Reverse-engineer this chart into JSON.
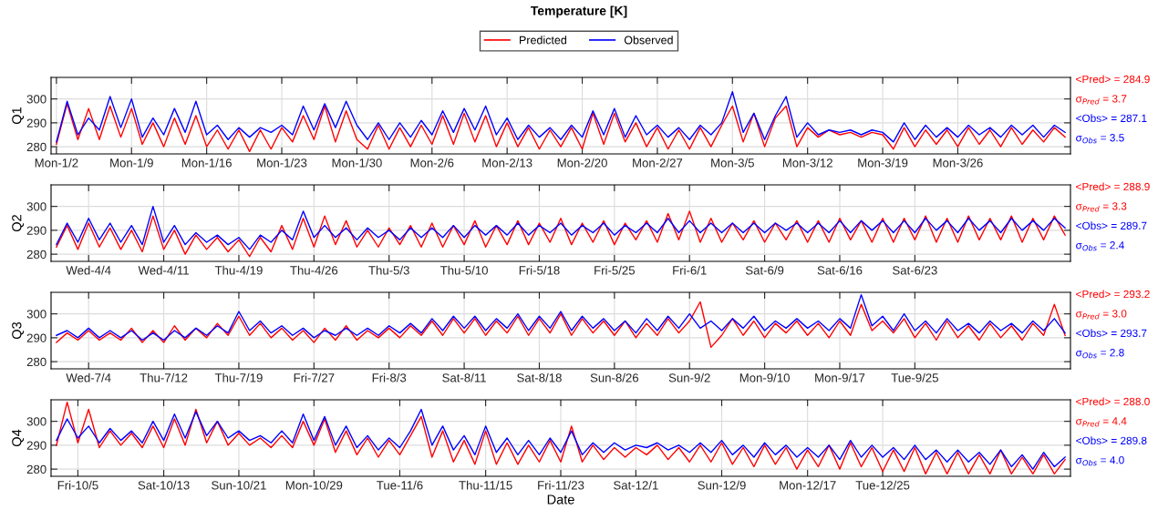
{
  "chart_data": [
    {
      "type": "line",
      "title": "Temperature [K]",
      "ylabel": "Q1",
      "legend": "top",
      "grid": true,
      "ylim": [
        277,
        309
      ],
      "yticks": [
        280,
        290,
        300
      ],
      "annotations": [
        "<Pred> = 284.9",
        "σ$_{Pred}$ = 3.7",
        "<Obs> = 287.1",
        "σ$_{Obs}$ = 3.5"
      ],
      "categories": [
        "Mon-1/2",
        null,
        null,
        null,
        null,
        null,
        null,
        "Mon-1/9",
        null,
        null,
        null,
        null,
        null,
        null,
        "Mon-1/16",
        null,
        null,
        null,
        null,
        null,
        null,
        "Mon-1/23",
        null,
        null,
        null,
        null,
        null,
        null,
        "Mon-1/30",
        null,
        null,
        null,
        null,
        null,
        null,
        "Mon-2/6",
        null,
        null,
        null,
        null,
        null,
        null,
        "Mon-2/13",
        null,
        null,
        null,
        null,
        null,
        null,
        "Mon-2/20",
        null,
        null,
        null,
        null,
        null,
        null,
        "Mon-2/27",
        null,
        null,
        null,
        null,
        null,
        null,
        "Mon-3/5",
        null,
        null,
        null,
        null,
        null,
        null,
        "Mon-3/12",
        null,
        null,
        null,
        null,
        null,
        null,
        "Mon-3/19",
        null,
        null,
        null,
        null,
        null,
        null,
        "Mon-3/26",
        null,
        null,
        null,
        null,
        null,
        null,
        null,
        null,
        null,
        null
      ],
      "series": [
        {
          "name": "Predicted",
          "color": "#ff0000",
          "values": [
            281,
            298,
            283,
            296,
            283,
            297,
            284,
            296,
            281,
            290,
            280,
            292,
            281,
            293,
            280,
            287,
            279,
            287,
            278,
            287,
            279,
            288,
            282,
            293,
            283,
            297,
            282,
            295,
            283,
            279,
            289,
            279,
            288,
            280,
            289,
            281,
            293,
            281,
            294,
            282,
            293,
            280,
            290,
            280,
            288,
            279,
            287,
            280,
            288,
            279,
            294,
            281,
            294,
            282,
            290,
            280,
            288,
            279,
            287,
            279,
            288,
            280,
            289,
            297,
            282,
            294,
            280,
            292,
            297,
            280,
            288,
            284,
            287,
            285,
            286,
            284,
            286,
            285,
            279,
            288,
            280,
            287,
            281,
            287,
            280,
            288,
            281,
            287,
            280,
            288,
            281,
            287,
            282,
            288,
            284
          ]
        },
        {
          "name": "Observed",
          "color": "#0000ff",
          "values": [
            282,
            299,
            285,
            292,
            287,
            301,
            288,
            300,
            284,
            292,
            285,
            296,
            286,
            299,
            285,
            289,
            283,
            288,
            284,
            288,
            286,
            289,
            285,
            297,
            287,
            298,
            288,
            299,
            289,
            283,
            290,
            283,
            290,
            284,
            291,
            285,
            295,
            286,
            296,
            287,
            297,
            285,
            292,
            283,
            289,
            284,
            288,
            283,
            289,
            284,
            295,
            285,
            296,
            284,
            293,
            285,
            289,
            284,
            288,
            283,
            289,
            285,
            290,
            303,
            286,
            294,
            283,
            293,
            301,
            284,
            290,
            285,
            287,
            286,
            287,
            285,
            287,
            286,
            282,
            290,
            283,
            289,
            284,
            288,
            284,
            289,
            285,
            288,
            284,
            289,
            285,
            289,
            284,
            289,
            286
          ]
        }
      ]
    },
    {
      "type": "line",
      "ylabel": "Q2",
      "grid": true,
      "ylim": [
        277,
        309
      ],
      "yticks": [
        280,
        290,
        300
      ],
      "annotations": [
        "<Pred> = 288.9",
        "σ$_{Pred}$ = 3.3",
        "<Obs> = 289.7",
        "σ$_{Obs}$ = 2.4"
      ],
      "categories": [
        null,
        null,
        null,
        "Wed-4/4",
        null,
        null,
        null,
        null,
        null,
        null,
        "Wed-4/11",
        null,
        null,
        null,
        null,
        null,
        null,
        "Thu-4/19",
        null,
        null,
        null,
        null,
        null,
        null,
        "Thu-4/26",
        null,
        null,
        null,
        null,
        null,
        null,
        "Thu-5/3",
        null,
        null,
        null,
        null,
        null,
        null,
        "Thu-5/10",
        null,
        null,
        null,
        null,
        null,
        null,
        "Fri-5/18",
        null,
        null,
        null,
        null,
        null,
        null,
        "Fri-5/25",
        null,
        null,
        null,
        null,
        null,
        null,
        "Fri-6/1",
        null,
        null,
        null,
        null,
        null,
        null,
        "Sat-6/9",
        null,
        null,
        null,
        null,
        null,
        null,
        "Sat-6/16",
        null,
        null,
        null,
        null,
        null,
        null,
        "Sat-6/23",
        null,
        null,
        null,
        null,
        null,
        null,
        null,
        null,
        null,
        null,
        null,
        null,
        null,
        null
      ],
      "series": [
        {
          "color": "#ff0000",
          "values": [
            283,
            292,
            282,
            293,
            283,
            291,
            282,
            290,
            281,
            296,
            282,
            290,
            280,
            288,
            282,
            287,
            281,
            286,
            279,
            287,
            281,
            292,
            282,
            295,
            283,
            296,
            284,
            294,
            283,
            290,
            283,
            291,
            284,
            292,
            283,
            293,
            283,
            292,
            284,
            294,
            283,
            292,
            284,
            294,
            284,
            293,
            285,
            295,
            284,
            293,
            285,
            294,
            284,
            293,
            286,
            294,
            285,
            297,
            286,
            298,
            285,
            295,
            285,
            293,
            286,
            294,
            285,
            293,
            286,
            294,
            285,
            294,
            285,
            295,
            286,
            294,
            285,
            295,
            285,
            295,
            286,
            296,
            285,
            295,
            285,
            296,
            286,
            295,
            286,
            296,
            285,
            295,
            286,
            296,
            288
          ]
        },
        {
          "color": "#0000ff",
          "values": [
            284,
            293,
            285,
            295,
            286,
            293,
            285,
            292,
            284,
            300,
            285,
            292,
            284,
            289,
            285,
            288,
            284,
            287,
            282,
            288,
            285,
            290,
            286,
            298,
            287,
            292,
            287,
            291,
            286,
            291,
            287,
            290,
            286,
            291,
            287,
            291,
            287,
            292,
            287,
            292,
            288,
            292,
            288,
            293,
            288,
            292,
            289,
            293,
            288,
            292,
            289,
            293,
            288,
            292,
            289,
            293,
            289,
            295,
            289,
            294,
            289,
            293,
            289,
            293,
            289,
            293,
            289,
            293,
            290,
            293,
            289,
            293,
            289,
            294,
            289,
            294,
            290,
            294,
            289,
            294,
            289,
            295,
            290,
            294,
            289,
            295,
            290,
            294,
            289,
            295,
            290,
            294,
            290,
            295,
            291
          ]
        }
      ]
    },
    {
      "type": "line",
      "ylabel": "Q3",
      "grid": true,
      "ylim": [
        277,
        309
      ],
      "yticks": [
        280,
        290,
        300
      ],
      "annotations": [
        "<Pred> = 293.2",
        "σ$_{Pred}$ = 3.0",
        "<Obs> = 293.7",
        "σ$_{Obs}$ = 2.8"
      ],
      "categories": [
        null,
        null,
        null,
        "Wed-7/4",
        null,
        null,
        null,
        null,
        null,
        null,
        "Thu-7/12",
        null,
        null,
        null,
        null,
        null,
        null,
        "Thu-7/19",
        null,
        null,
        null,
        null,
        null,
        null,
        "Fri-7/27",
        null,
        null,
        null,
        null,
        null,
        null,
        "Fri-8/3",
        null,
        null,
        null,
        null,
        null,
        null,
        "Sat-8/11",
        null,
        null,
        null,
        null,
        null,
        null,
        "Sat-8/18",
        null,
        null,
        null,
        null,
        null,
        null,
        "Sun-8/26",
        null,
        null,
        null,
        null,
        null,
        null,
        "Sun-9/2",
        null,
        null,
        null,
        null,
        null,
        null,
        "Mon-9/10",
        null,
        null,
        null,
        null,
        null,
        null,
        "Mon-9/17",
        null,
        null,
        null,
        null,
        null,
        null,
        "Tue-9/25",
        null,
        null,
        null,
        null,
        null,
        null,
        null,
        null,
        null,
        null,
        null,
        null,
        null,
        null
      ],
      "series": [
        {
          "color": "#ff0000",
          "values": [
            288,
            292,
            289,
            293,
            289,
            292,
            289,
            294,
            288,
            293,
            288,
            295,
            289,
            294,
            290,
            296,
            291,
            299,
            291,
            296,
            290,
            294,
            289,
            293,
            288,
            294,
            289,
            295,
            289,
            293,
            290,
            294,
            290,
            295,
            291,
            297,
            291,
            298,
            292,
            298,
            291,
            297,
            292,
            299,
            291,
            298,
            292,
            300,
            291,
            298,
            292,
            297,
            291,
            297,
            290,
            296,
            291,
            298,
            292,
            297,
            305,
            286,
            291,
            298,
            291,
            297,
            290,
            296,
            292,
            297,
            291,
            296,
            290,
            297,
            291,
            304,
            293,
            297,
            292,
            298,
            290,
            296,
            289,
            297,
            290,
            295,
            289,
            296,
            290,
            295,
            289,
            296,
            291,
            304,
            291
          ]
        },
        {
          "color": "#0000ff",
          "values": [
            291,
            293,
            290,
            294,
            290,
            293,
            290,
            293,
            289,
            292,
            289,
            293,
            290,
            294,
            291,
            295,
            292,
            301,
            293,
            297,
            292,
            295,
            291,
            294,
            290,
            293,
            291,
            294,
            291,
            294,
            291,
            295,
            292,
            296,
            292,
            298,
            293,
            299,
            294,
            299,
            293,
            298,
            294,
            300,
            293,
            299,
            294,
            301,
            293,
            299,
            294,
            298,
            293,
            297,
            292,
            298,
            293,
            299,
            294,
            300,
            294,
            297,
            293,
            298,
            294,
            299,
            293,
            297,
            294,
            298,
            294,
            297,
            293,
            298,
            294,
            308,
            295,
            299,
            293,
            300,
            293,
            297,
            292,
            298,
            293,
            296,
            292,
            297,
            293,
            296,
            292,
            297,
            293,
            298,
            292
          ]
        }
      ]
    },
    {
      "type": "line",
      "ylabel": "Q4",
      "xlabel": "Date",
      "grid": true,
      "ylim": [
        277,
        309
      ],
      "yticks": [
        280,
        290,
        300
      ],
      "annotations": [
        "<Pred> = 288.0",
        "σ$_{Pred}$ = 4.4",
        "<Obs> = 289.8",
        "σ$_{Obs}$ = 4.0"
      ],
      "categories": [
        null,
        null,
        "Fri-10/5",
        null,
        null,
        null,
        null,
        null,
        null,
        null,
        "Sat-10/13",
        null,
        null,
        null,
        null,
        null,
        null,
        "Sun-10/21",
        null,
        null,
        null,
        null,
        null,
        null,
        "Mon-10/29",
        null,
        null,
        null,
        null,
        null,
        null,
        null,
        "Tue-11/6",
        null,
        null,
        null,
        null,
        null,
        null,
        null,
        "Thu-11/15",
        null,
        null,
        null,
        null,
        null,
        null,
        "Fri-11/23",
        null,
        null,
        null,
        null,
        null,
        null,
        "Sat-12/1",
        null,
        null,
        null,
        null,
        null,
        null,
        null,
        "Sun-12/9",
        null,
        null,
        null,
        null,
        null,
        null,
        null,
        "Mon-12/17",
        null,
        null,
        null,
        null,
        null,
        null,
        "Tue-12/25",
        null,
        null,
        null,
        null,
        null,
        null,
        null,
        null,
        null,
        null,
        null,
        null,
        null,
        null,
        null,
        null,
        null
      ],
      "series": [
        {
          "color": "#ff0000",
          "values": [
            290,
            308,
            291,
            305,
            289,
            296,
            290,
            295,
            289,
            298,
            289,
            301,
            290,
            305,
            291,
            300,
            290,
            295,
            290,
            293,
            289,
            294,
            289,
            300,
            290,
            301,
            287,
            296,
            286,
            293,
            285,
            292,
            286,
            294,
            302,
            285,
            296,
            283,
            292,
            282,
            296,
            282,
            291,
            282,
            290,
            283,
            292,
            283,
            298,
            283,
            290,
            284,
            289,
            285,
            289,
            286,
            290,
            284,
            289,
            283,
            290,
            283,
            291,
            282,
            289,
            281,
            290,
            282,
            289,
            280,
            288,
            281,
            290,
            280,
            291,
            281,
            289,
            279,
            288,
            279,
            289,
            278,
            287,
            278,
            287,
            278,
            286,
            278,
            288,
            278,
            285,
            278,
            286,
            278,
            284
          ]
        },
        {
          "color": "#0000ff",
          "values": [
            292,
            301,
            293,
            298,
            291,
            297,
            292,
            296,
            291,
            300,
            292,
            303,
            293,
            304,
            294,
            300,
            293,
            296,
            292,
            294,
            291,
            296,
            291,
            303,
            292,
            302,
            290,
            298,
            289,
            294,
            288,
            293,
            289,
            296,
            305,
            290,
            298,
            288,
            294,
            286,
            298,
            287,
            293,
            286,
            292,
            286,
            293,
            287,
            296,
            286,
            291,
            287,
            291,
            288,
            290,
            289,
            291,
            288,
            290,
            287,
            291,
            287,
            292,
            286,
            290,
            285,
            291,
            286,
            290,
            285,
            289,
            285,
            290,
            284,
            292,
            285,
            290,
            285,
            289,
            284,
            290,
            284,
            288,
            283,
            288,
            283,
            287,
            282,
            288,
            281,
            286,
            280,
            287,
            281,
            285
          ]
        }
      ]
    }
  ]
}
